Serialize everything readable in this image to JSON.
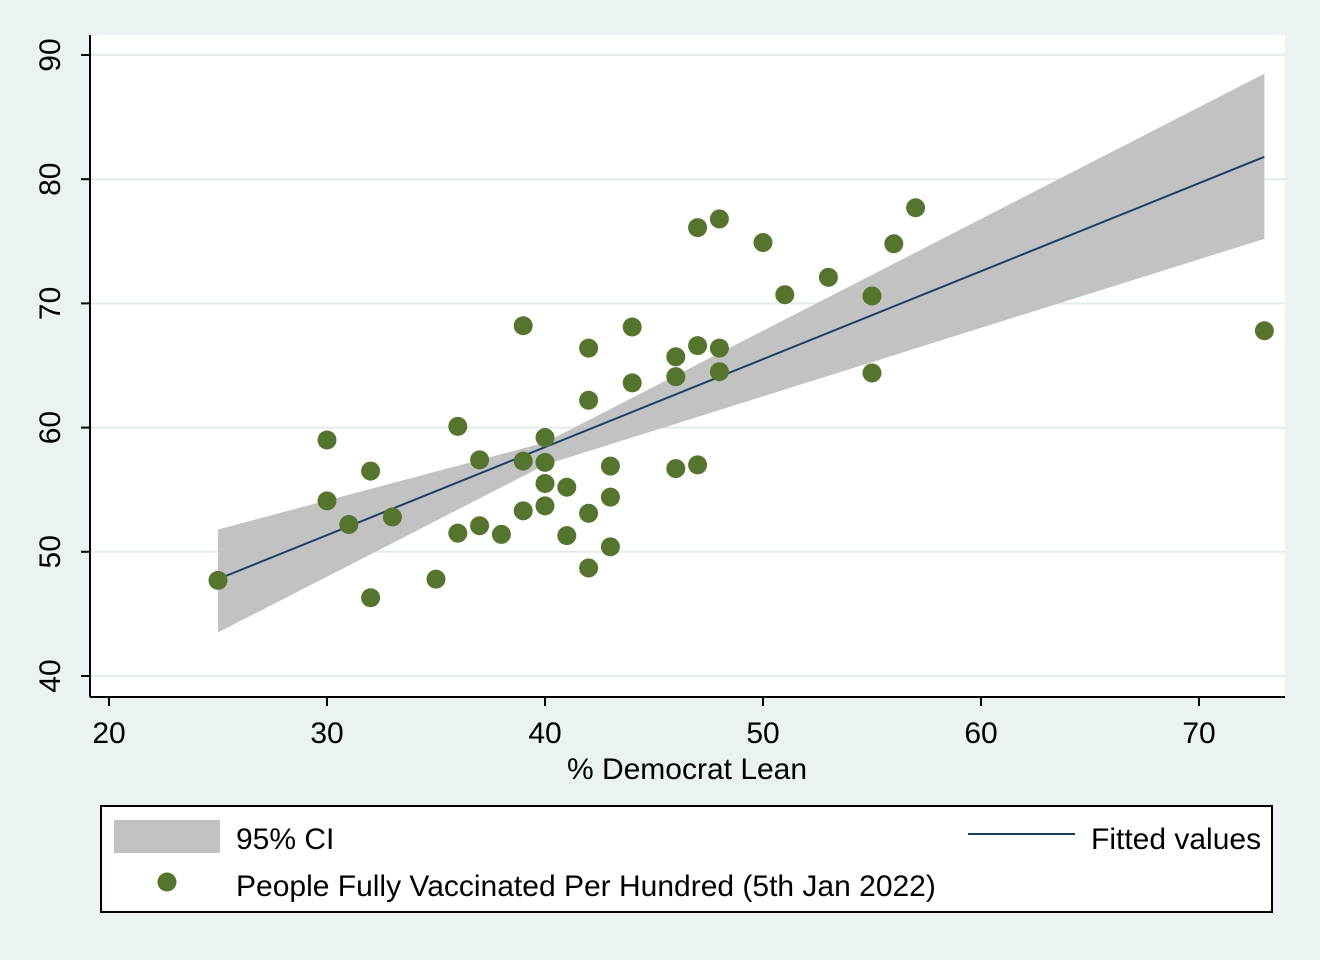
{
  "chart_data": {
    "type": "scatter",
    "title": "",
    "xlabel": "% Democrat Lean",
    "ylabel": "",
    "xlim": [
      19,
      74
    ],
    "ylim": [
      38.5,
      92
    ],
    "xticks": [
      20,
      30,
      40,
      50,
      60,
      70
    ],
    "yticks": [
      40,
      50,
      60,
      70,
      80,
      90
    ],
    "grid": "horizontal",
    "legend_position": "bottom",
    "colors": {
      "points": "#55752f",
      "fit_line": "#1a3f66",
      "ci_band": "#c2c2c2",
      "plot_background": "#ffffff",
      "outer_background": "#eaf2f3",
      "grid": "#e2ecec"
    },
    "series": [
      {
        "name": "People Fully Vaccinated Per Hundred (5th Jan 2022)",
        "kind": "scatter",
        "points": [
          [
            25,
            47.7
          ],
          [
            30,
            59.0
          ],
          [
            30,
            54.1
          ],
          [
            31,
            52.2
          ],
          [
            32,
            56.5
          ],
          [
            32,
            46.3
          ],
          [
            33,
            52.8
          ],
          [
            35,
            47.8
          ],
          [
            36,
            60.1
          ],
          [
            36,
            51.5
          ],
          [
            37,
            57.4
          ],
          [
            37,
            52.1
          ],
          [
            38,
            51.4
          ],
          [
            39,
            68.2
          ],
          [
            39,
            57.3
          ],
          [
            39,
            53.3
          ],
          [
            40,
            59.2
          ],
          [
            40,
            57.2
          ],
          [
            40,
            55.5
          ],
          [
            40,
            53.7
          ],
          [
            41,
            55.2
          ],
          [
            41,
            51.3
          ],
          [
            42,
            66.4
          ],
          [
            42,
            62.2
          ],
          [
            42,
            53.1
          ],
          [
            42,
            48.7
          ],
          [
            43,
            56.9
          ],
          [
            43,
            54.4
          ],
          [
            43,
            50.4
          ],
          [
            44,
            68.1
          ],
          [
            44,
            63.6
          ],
          [
            46,
            65.7
          ],
          [
            46,
            64.1
          ],
          [
            46,
            56.7
          ],
          [
            47,
            76.1
          ],
          [
            47,
            66.6
          ],
          [
            47,
            57.0
          ],
          [
            48,
            76.8
          ],
          [
            48,
            66.4
          ],
          [
            48,
            64.5
          ],
          [
            50,
            74.9
          ],
          [
            51,
            70.7
          ],
          [
            53,
            72.1
          ],
          [
            55,
            70.6
          ],
          [
            55,
            64.4
          ],
          [
            56,
            74.8
          ],
          [
            57,
            77.7
          ],
          [
            73,
            67.8
          ]
        ]
      },
      {
        "name": "Fitted values",
        "kind": "line",
        "x": [
          25,
          73
        ],
        "y": [
          47.8,
          81.8
        ]
      },
      {
        "name": "95% CI",
        "kind": "band",
        "x": [
          25,
          40,
          73
        ],
        "lower": [
          43.5,
          57.0,
          75.2
        ],
        "upper": [
          51.8,
          58.8,
          88.5
        ]
      }
    ]
  }
}
